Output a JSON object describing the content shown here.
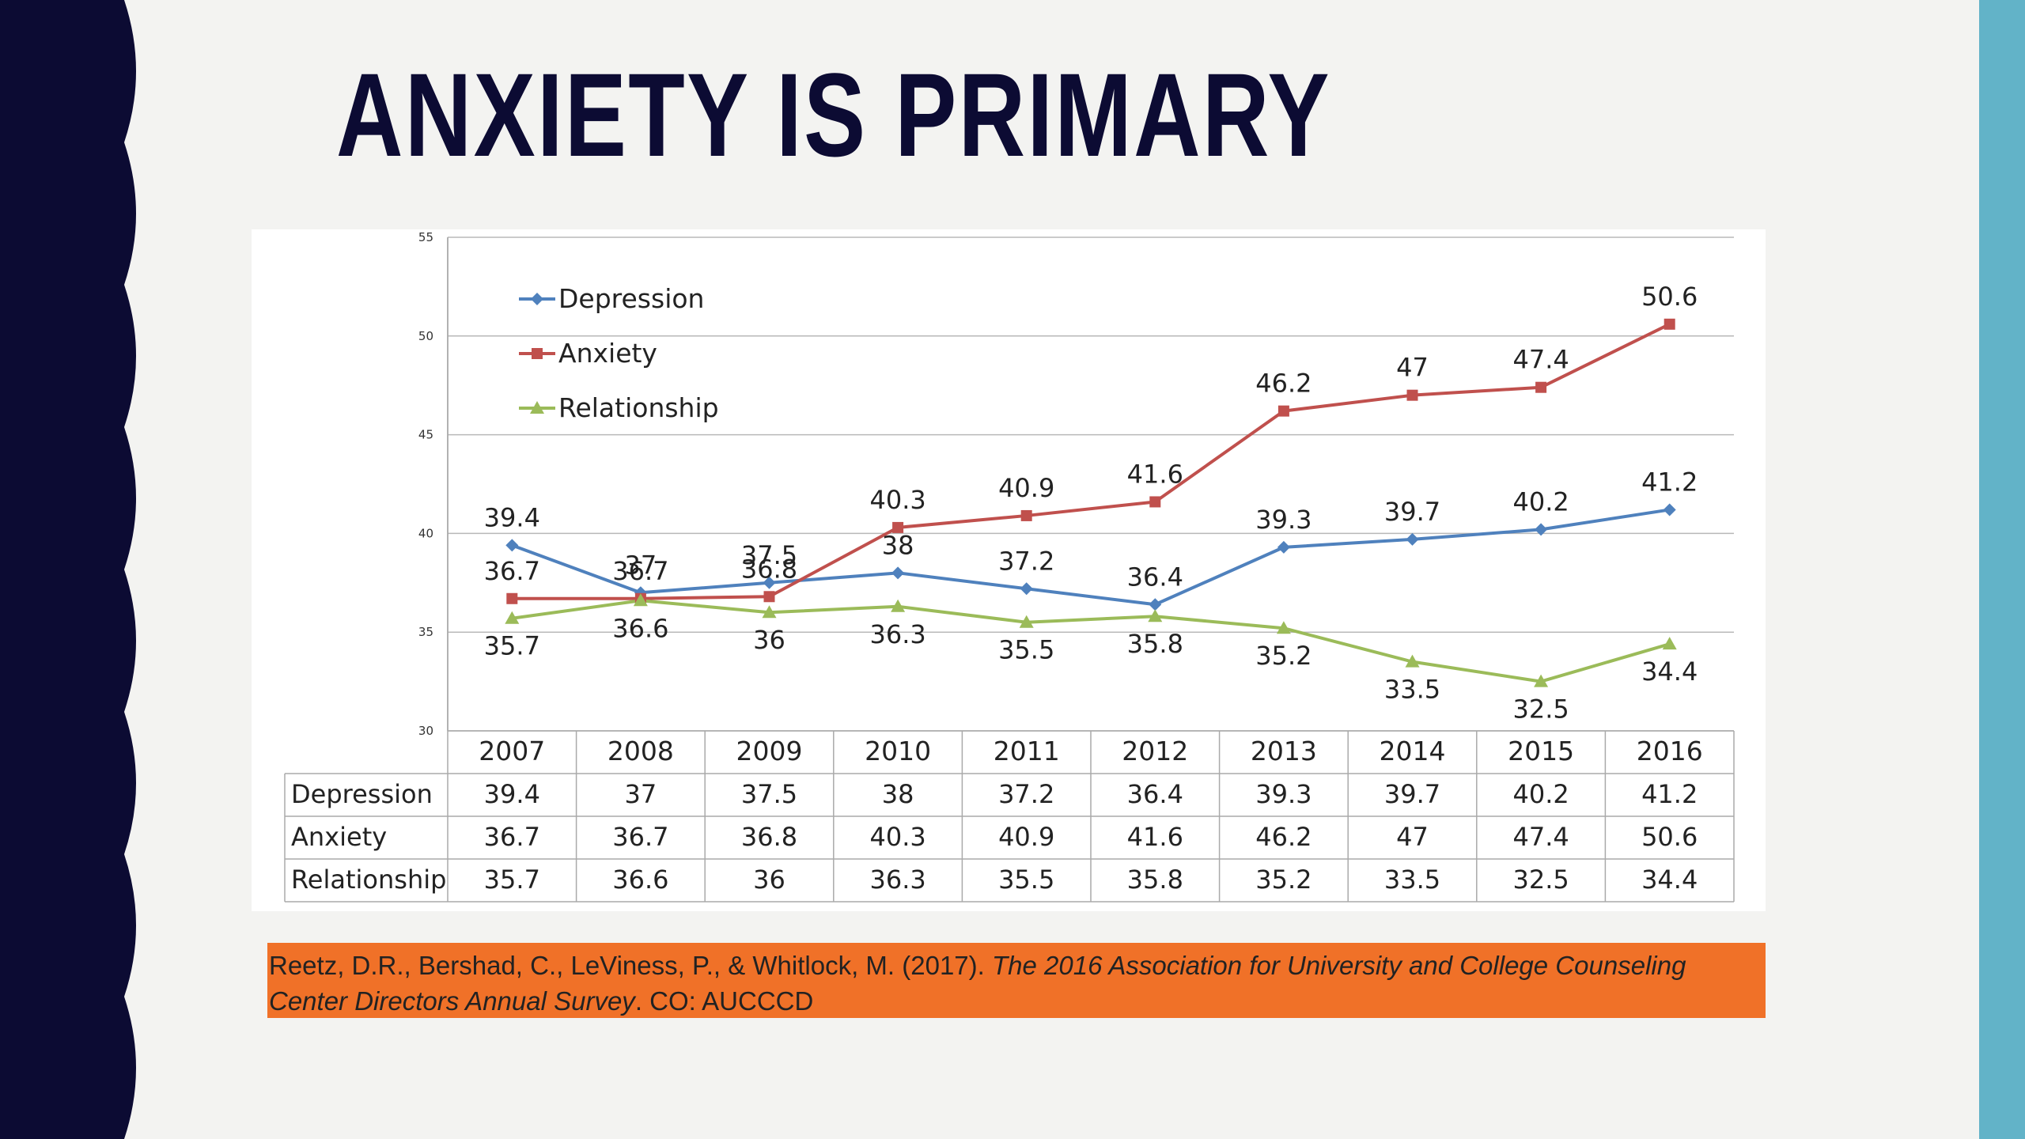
{
  "slide": {
    "title": "ANXIETY IS PRIMARY",
    "colors": {
      "left_band": "#0c0b33",
      "right_band": "#62b3c8",
      "citation_bg": "#f07128"
    }
  },
  "citation": {
    "authors": "Reetz, D.R., Bershad, C., LeViness, P., & Whitlock, M. (2017). ",
    "work_title": "The 2016 Association for University and College Counseling Center Directors Annual Survey",
    "publisher": ". CO: AUCCCD"
  },
  "chart_data": {
    "type": "line",
    "categories": [
      "2007",
      "2008",
      "2009",
      "2010",
      "2011",
      "2012",
      "2013",
      "2014",
      "2015",
      "2016"
    ],
    "y_ticks": [
      "30",
      "35",
      "40",
      "45",
      "50",
      "55"
    ],
    "ylim": [
      30,
      55
    ],
    "grid": true,
    "legend": "top-left",
    "data_table": true,
    "series": [
      {
        "name": "Depression",
        "color": "#4f81bd",
        "marker": "diamond",
        "values": [
          39.4,
          37,
          37.5,
          38,
          37.2,
          36.4,
          39.3,
          39.7,
          40.2,
          41.2
        ],
        "labels": [
          "39.4",
          "37",
          "37.5",
          "38",
          "37.2",
          "36.4",
          "39.3",
          "39.7",
          "40.2",
          "41.2"
        ]
      },
      {
        "name": "Anxiety",
        "color": "#c0504d",
        "marker": "square",
        "values": [
          36.7,
          36.7,
          36.8,
          40.3,
          40.9,
          41.6,
          46.2,
          47,
          47.4,
          50.6
        ],
        "labels": [
          "36.7",
          "36.7",
          "36.8",
          "40.3",
          "40.9",
          "41.6",
          "46.2",
          "47",
          "47.4",
          "50.6"
        ]
      },
      {
        "name": "Relationship",
        "color": "#9bbb59",
        "marker": "triangle",
        "values": [
          35.7,
          36.6,
          36,
          36.3,
          35.5,
          35.8,
          35.2,
          33.5,
          32.5,
          34.4
        ],
        "labels": [
          "35.7",
          "36.6",
          "36",
          "36.3",
          "35.5",
          "35.8",
          "35.2",
          "33.5",
          "32.5",
          "34.4"
        ]
      }
    ]
  }
}
